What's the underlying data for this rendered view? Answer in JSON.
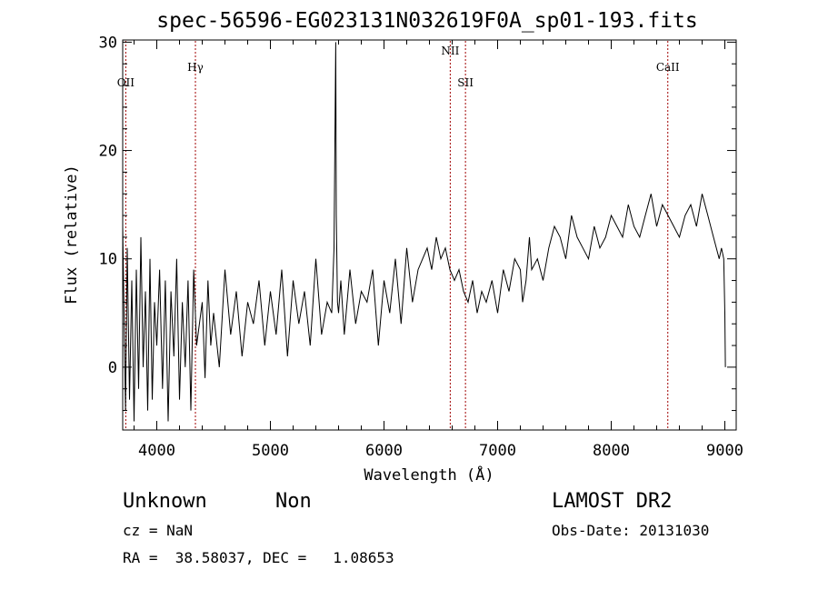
{
  "chart_data": {
    "type": "line",
    "title": "spec-56596-EG023131N032619F0A_sp01-193.fits",
    "xlabel": "Wavelength (Å)",
    "ylabel": "Flux (relative)",
    "xlim": [
      3700,
      9100
    ],
    "ylim": [
      -5.8,
      30.2
    ],
    "x_ticks": [
      4000,
      5000,
      6000,
      7000,
      8000,
      9000
    ],
    "y_ticks": [
      0,
      10,
      20,
      30
    ],
    "grid": false,
    "series": [
      {
        "x": [
          3700,
          3725,
          3740,
          3760,
          3780,
          3800,
          3820,
          3840,
          3860,
          3880,
          3900,
          3920,
          3940,
          3960,
          3980,
          4000,
          4025,
          4050,
          4075,
          4100,
          4125,
          4150,
          4175,
          4200,
          4225,
          4250,
          4275,
          4300,
          4325,
          4350,
          4375,
          4400,
          4425,
          4450,
          4475,
          4500,
          4550,
          4600,
          4650,
          4700,
          4750,
          4800,
          4850,
          4900,
          4950,
          5000,
          5050,
          5100,
          5150,
          5200,
          5250,
          5300,
          5350,
          5400,
          5450,
          5500,
          5540,
          5560,
          5570,
          5575,
          5580,
          5590,
          5600,
          5620,
          5650,
          5700,
          5750,
          5800,
          5850,
          5900,
          5950,
          6000,
          6050,
          6100,
          6150,
          6200,
          6250,
          6300,
          6340,
          6380,
          6420,
          6460,
          6500,
          6540,
          6580,
          6620,
          6660,
          6700,
          6740,
          6780,
          6820,
          6860,
          6900,
          6950,
          7000,
          7050,
          7100,
          7150,
          7200,
          7220,
          7250,
          7280,
          7300,
          7350,
          7400,
          7450,
          7500,
          7550,
          7600,
          7650,
          7700,
          7750,
          7800,
          7850,
          7900,
          7950,
          8000,
          8050,
          8100,
          8150,
          8200,
          8250,
          8300,
          8350,
          8400,
          8450,
          8500,
          8550,
          8600,
          8650,
          8700,
          8750,
          8800,
          8850,
          8900,
          8950,
          8970,
          8990,
          9000,
          9005
        ],
        "y": [
          13,
          -4,
          11,
          -3,
          8,
          -5,
          9,
          -2,
          12,
          0,
          7,
          -4,
          10,
          -3,
          6,
          2,
          9,
          -2,
          8,
          -5,
          7,
          1,
          10,
          -3,
          6,
          0,
          8,
          -4,
          9,
          2,
          4,
          6,
          -1,
          8,
          2,
          5,
          0,
          9,
          3,
          7,
          1,
          6,
          4,
          8,
          2,
          7,
          3,
          9,
          1,
          8,
          4,
          7,
          2,
          10,
          3,
          6,
          5,
          11,
          24,
          30,
          14,
          6,
          5,
          8,
          3,
          9,
          4,
          7,
          6,
          9,
          2,
          8,
          5,
          10,
          4,
          11,
          6,
          9,
          10,
          11,
          9,
          12,
          10,
          11,
          9,
          8,
          9,
          7,
          6,
          8,
          5,
          7,
          6,
          8,
          5,
          9,
          7,
          10,
          9,
          6,
          8,
          12,
          9,
          10,
          8,
          11,
          13,
          12,
          10,
          14,
          12,
          11,
          10,
          13,
          11,
          12,
          14,
          13,
          12,
          15,
          13,
          12,
          14,
          16,
          13,
          15,
          14,
          13,
          12,
          14,
          15,
          13,
          16,
          14,
          12,
          10,
          11,
          10,
          5,
          0
        ]
      }
    ],
    "annotations": [
      {
        "label": "OII",
        "x": 3727
      },
      {
        "label": "Hγ",
        "x": 4340
      },
      {
        "label": "NII",
        "x": 6583
      },
      {
        "label": "SII",
        "x": 6717
      },
      {
        "label": "CaII",
        "x": 8498
      }
    ]
  },
  "footer": {
    "class_label": "Unknown",
    "subclass_label": "Non",
    "redshift": "cz = NaN",
    "coords": "RA =  38.58037, DEC =   1.08653",
    "survey": "LAMOST DR2",
    "obs_date": "Obs-Date: 20131030"
  }
}
